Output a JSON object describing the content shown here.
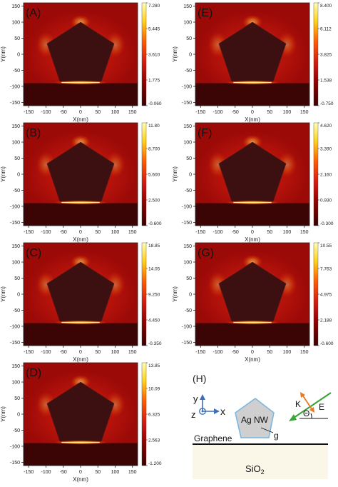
{
  "colors": {
    "colorbar_stops": [
      "#3a0000",
      "#8b0000",
      "#d41a10",
      "#ff5a00",
      "#ffd21a",
      "#ffffb5"
    ],
    "background_field": "#9c0a08",
    "nanowire_fill": "#3c1010",
    "substrate_fill": "#3a0504",
    "hotspot": "#fff3a0"
  },
  "chart_data": [
    {
      "type": "heatmap",
      "panel_label": "(A)",
      "xlabel": "X(nm)",
      "ylabel": "Y(nm)",
      "xlim": [
        -165,
        165
      ],
      "ylim": [
        -160,
        160
      ],
      "xticks": [
        -150,
        -100,
        -50,
        0,
        50,
        100,
        150
      ],
      "yticks": [
        -150,
        -100,
        -50,
        0,
        50,
        100,
        150
      ],
      "colorbar_ticks": [
        "7.280",
        "5.445",
        "3.610",
        "1.775",
        "-0.060"
      ]
    },
    {
      "type": "heatmap",
      "panel_label": "(E)",
      "xlabel": "X(nm)",
      "ylabel": "Y(nm)",
      "xlim": [
        -165,
        165
      ],
      "ylim": [
        -160,
        160
      ],
      "xticks": [
        -150,
        -100,
        -50,
        0,
        50,
        100,
        150
      ],
      "yticks": [
        -150,
        -100,
        -50,
        0,
        50,
        100,
        150
      ],
      "colorbar_ticks": [
        "8.400",
        "6.112",
        "3.825",
        "1.538",
        "-0.750"
      ]
    },
    {
      "type": "heatmap",
      "panel_label": "(B)",
      "xlabel": "X(nm)",
      "ylabel": "Y(nm)",
      "xlim": [
        -165,
        165
      ],
      "ylim": [
        -160,
        160
      ],
      "xticks": [
        -150,
        -100,
        -50,
        0,
        50,
        100,
        150
      ],
      "yticks": [
        -150,
        -100,
        -50,
        0,
        50,
        100,
        150
      ],
      "colorbar_ticks": [
        "11.80",
        "8.700",
        "5.600",
        "2.500",
        "-0.600"
      ]
    },
    {
      "type": "heatmap",
      "panel_label": "(F)",
      "xlabel": "X(nm)",
      "ylabel": "Y(nm)",
      "xlim": [
        -165,
        165
      ],
      "ylim": [
        -160,
        160
      ],
      "xticks": [
        -150,
        -100,
        -50,
        0,
        50,
        100,
        150
      ],
      "yticks": [
        -150,
        -100,
        -50,
        0,
        50,
        100,
        150
      ],
      "colorbar_ticks": [
        "4.620",
        "3.390",
        "2.160",
        "0.930",
        "-0.300"
      ]
    },
    {
      "type": "heatmap",
      "panel_label": "(C)",
      "xlabel": "X(nm)",
      "ylabel": "Y(nm)",
      "xlim": [
        -165,
        165
      ],
      "ylim": [
        -160,
        160
      ],
      "xticks": [
        -150,
        -100,
        -50,
        0,
        50,
        100,
        150
      ],
      "yticks": [
        -150,
        -100,
        -50,
        0,
        50,
        100,
        150
      ],
      "colorbar_ticks": [
        "18.85",
        "14.05",
        "9.250",
        "4.450",
        "-0.350"
      ]
    },
    {
      "type": "heatmap",
      "panel_label": "(G)",
      "xlabel": "X(nm)",
      "ylabel": "Y(nm)",
      "xlim": [
        -165,
        165
      ],
      "ylim": [
        -160,
        160
      ],
      "xticks": [
        -150,
        -100,
        -50,
        0,
        50,
        100,
        150
      ],
      "yticks": [
        -150,
        -100,
        -50,
        0,
        50,
        100,
        150
      ],
      "colorbar_ticks": [
        "10.55",
        "7.763",
        "4.975",
        "2.188",
        "-0.600"
      ]
    },
    {
      "type": "heatmap",
      "panel_label": "(D)",
      "xlabel": "X(nm)",
      "ylabel": "Y(nm)",
      "xlim": [
        -165,
        165
      ],
      "ylim": [
        -160,
        160
      ],
      "xticks": [
        -150,
        -100,
        -50,
        0,
        50,
        100,
        150
      ],
      "yticks": [
        -150,
        -100,
        -50,
        0,
        50,
        100,
        150
      ],
      "colorbar_ticks": [
        "13.85",
        "10.09",
        "6.325",
        "2.563",
        "-1.200"
      ]
    }
  ],
  "schematic": {
    "panel_label": "(H)",
    "axis_y": "y",
    "axis_z": "z",
    "axis_x": "x",
    "nanowire_label": "Ag NW",
    "graphene_label": "Graphene",
    "substrate_label": "SiO",
    "substrate_subscript": "2",
    "gap_label": "g",
    "wavevector_label": "K",
    "field_label": "E",
    "angle_label": "Θ"
  }
}
